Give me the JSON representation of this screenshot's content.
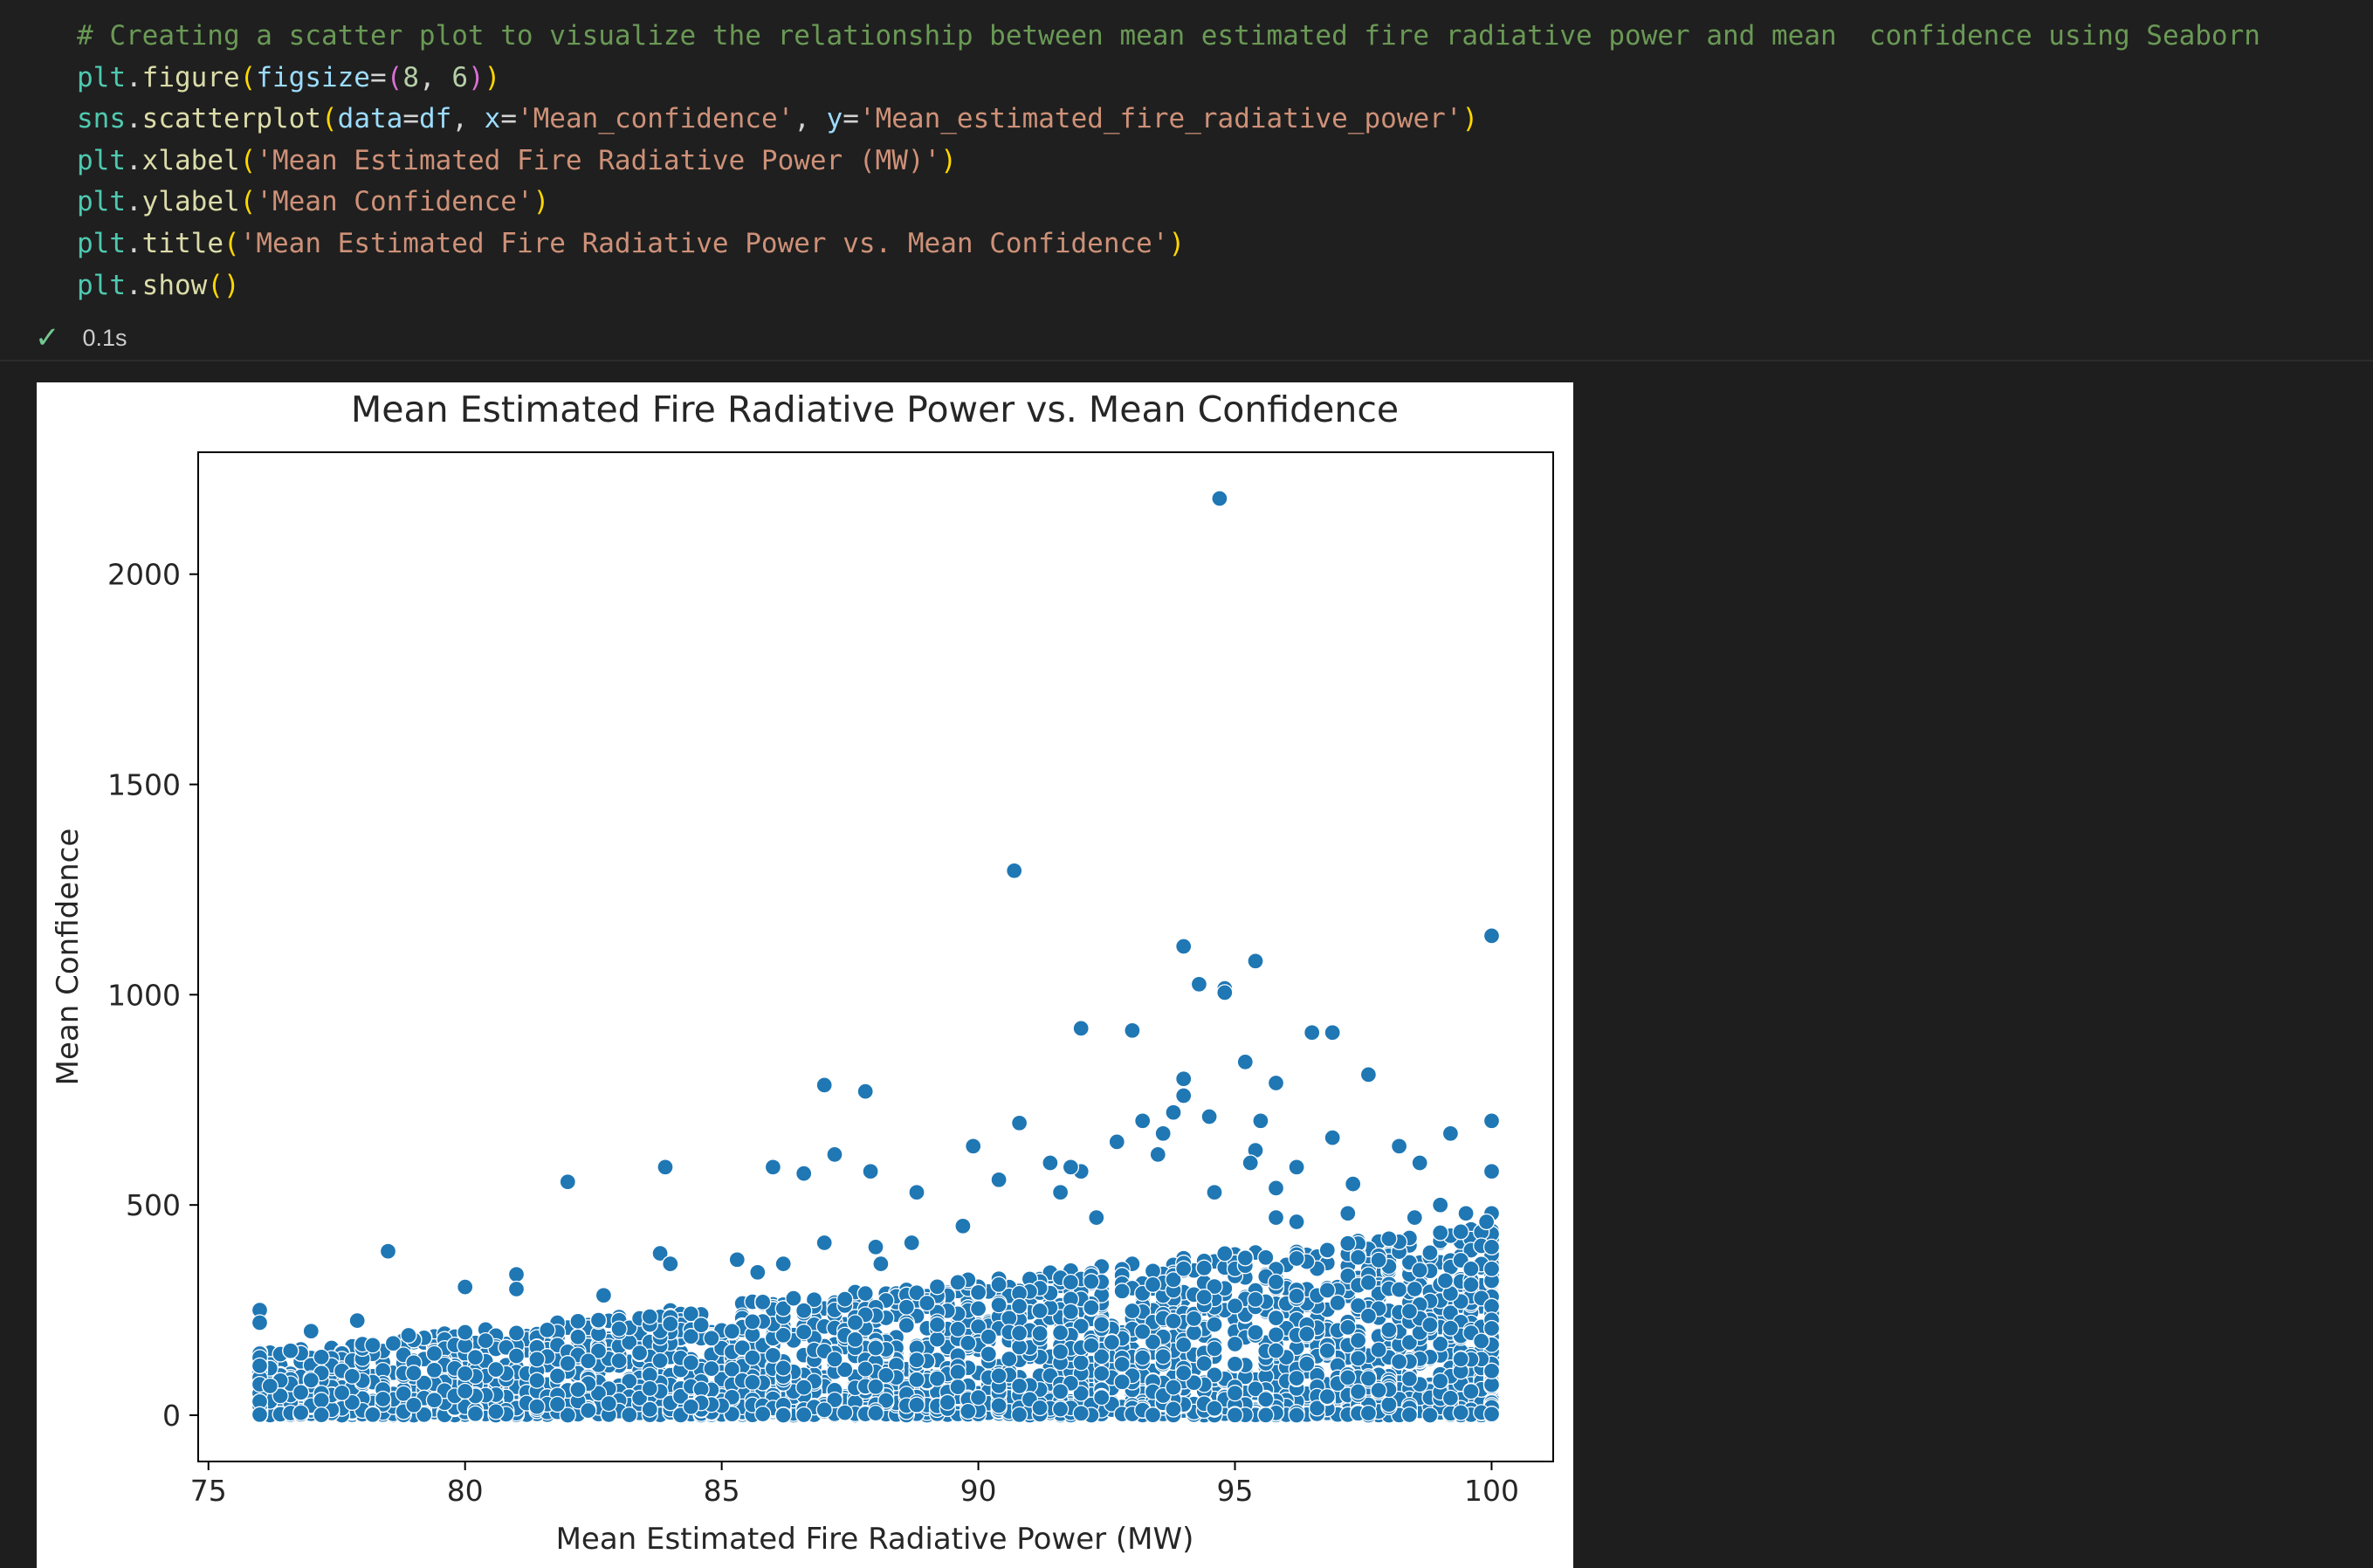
{
  "code_cell": {
    "lines": [
      [
        {
          "c": "cm",
          "t": "# Creating a scatter plot to visualize the relationship between mean estimated fire radiative power and mean  confidence using Seaborn"
        }
      ],
      [
        {
          "c": "mod",
          "t": "plt"
        },
        {
          "c": "",
          "t": "."
        },
        {
          "c": "fn",
          "t": "figure"
        },
        {
          "c": "b1",
          "t": "("
        },
        {
          "c": "pm",
          "t": "figsize"
        },
        {
          "c": "",
          "t": "="
        },
        {
          "c": "b2",
          "t": "("
        },
        {
          "c": "nm",
          "t": "8"
        },
        {
          "c": "",
          "t": ", "
        },
        {
          "c": "nm",
          "t": "6"
        },
        {
          "c": "b2",
          "t": ")"
        },
        {
          "c": "b1",
          "t": ")"
        }
      ],
      [
        {
          "c": "mod",
          "t": "sns"
        },
        {
          "c": "",
          "t": "."
        },
        {
          "c": "fn",
          "t": "scatterplot"
        },
        {
          "c": "b1",
          "t": "("
        },
        {
          "c": "pm",
          "t": "data"
        },
        {
          "c": "",
          "t": "="
        },
        {
          "c": "pm",
          "t": "df"
        },
        {
          "c": "",
          "t": ", "
        },
        {
          "c": "pm",
          "t": "x"
        },
        {
          "c": "",
          "t": "="
        },
        {
          "c": "st",
          "t": "'Mean_confidence'"
        },
        {
          "c": "",
          "t": ", "
        },
        {
          "c": "pm",
          "t": "y"
        },
        {
          "c": "",
          "t": "="
        },
        {
          "c": "st",
          "t": "'Mean_estimated_fire_radiative_power'"
        },
        {
          "c": "b1",
          "t": ")"
        }
      ],
      [
        {
          "c": "mod",
          "t": "plt"
        },
        {
          "c": "",
          "t": "."
        },
        {
          "c": "fn",
          "t": "xlabel"
        },
        {
          "c": "b1",
          "t": "("
        },
        {
          "c": "st",
          "t": "'Mean Estimated Fire Radiative Power (MW)'"
        },
        {
          "c": "b1",
          "t": ")"
        }
      ],
      [
        {
          "c": "mod",
          "t": "plt"
        },
        {
          "c": "",
          "t": "."
        },
        {
          "c": "fn",
          "t": "ylabel"
        },
        {
          "c": "b1",
          "t": "("
        },
        {
          "c": "st",
          "t": "'Mean Confidence'"
        },
        {
          "c": "b1",
          "t": ")"
        }
      ],
      [
        {
          "c": "mod",
          "t": "plt"
        },
        {
          "c": "",
          "t": "."
        },
        {
          "c": "fn",
          "t": "title"
        },
        {
          "c": "b1",
          "t": "("
        },
        {
          "c": "st",
          "t": "'Mean Estimated Fire Radiative Power vs. Mean Confidence'"
        },
        {
          "c": "b1",
          "t": ")"
        }
      ],
      [
        {
          "c": "mod",
          "t": "plt"
        },
        {
          "c": "",
          "t": "."
        },
        {
          "c": "fn",
          "t": "show"
        },
        {
          "c": "b1",
          "t": "()"
        }
      ]
    ]
  },
  "status": {
    "check_icon": "check-icon",
    "exec_time": "0.1s"
  },
  "colors": {
    "point": "#1f77b4",
    "point_edge": "#ffffff"
  },
  "chart_data": {
    "type": "scatter",
    "title": "Mean Estimated Fire Radiative Power vs. Mean Confidence",
    "xlabel": "Mean Estimated Fire Radiative Power (MW)",
    "ylabel": "Mean Confidence",
    "xlim": [
      74.8,
      101.2
    ],
    "ylim": [
      -110,
      2290
    ],
    "xticks": [
      75,
      80,
      85,
      90,
      95,
      100
    ],
    "yticks": [
      0,
      500,
      1000,
      1500,
      2000
    ],
    "grid": false,
    "legend": "none",
    "points": [
      [
        94.7,
        2180
      ],
      [
        90.7,
        1295
      ],
      [
        100,
        1140
      ],
      [
        94.0,
        1115
      ],
      [
        95.4,
        1080
      ],
      [
        94.3,
        1025
      ],
      [
        94.8,
        1015
      ],
      [
        94.8,
        1005
      ],
      [
        92.0,
        920
      ],
      [
        93.0,
        915
      ],
      [
        96.5,
        910
      ],
      [
        96.9,
        910
      ],
      [
        97.6,
        810
      ],
      [
        95.2,
        840
      ],
      [
        95.8,
        790
      ],
      [
        94.0,
        800
      ],
      [
        87.0,
        785
      ],
      [
        87.8,
        770
      ],
      [
        94.0,
        760
      ],
      [
        93.8,
        720
      ],
      [
        94.5,
        710
      ],
      [
        95.5,
        700
      ],
      [
        100,
        700
      ],
      [
        90.8,
        695
      ],
      [
        93.2,
        700
      ],
      [
        93.6,
        670
      ],
      [
        92.7,
        650
      ],
      [
        96.9,
        660
      ],
      [
        89.9,
        640
      ],
      [
        98.2,
        640
      ],
      [
        99.2,
        670
      ],
      [
        87.2,
        620
      ],
      [
        93.5,
        620
      ],
      [
        95.4,
        630
      ],
      [
        95.3,
        600
      ],
      [
        98.6,
        600
      ],
      [
        91.4,
        600
      ],
      [
        86.0,
        590
      ],
      [
        83.9,
        590
      ],
      [
        87.9,
        580
      ],
      [
        92.0,
        580
      ],
      [
        91.8,
        590
      ],
      [
        86.6,
        575
      ],
      [
        90.4,
        560
      ],
      [
        100,
        580
      ],
      [
        96.2,
        590
      ],
      [
        82.0,
        555
      ],
      [
        97.3,
        550
      ],
      [
        91.6,
        530
      ],
      [
        88.8,
        530
      ],
      [
        94.6,
        530
      ],
      [
        95.8,
        540
      ],
      [
        99.0,
        500
      ],
      [
        99.5,
        480
      ],
      [
        89.7,
        450
      ],
      [
        78.5,
        390
      ],
      [
        80.0,
        305
      ],
      [
        81.0,
        335
      ],
      [
        83.8,
        385
      ],
      [
        84.0,
        360
      ],
      [
        82.7,
        285
      ],
      [
        81.0,
        300
      ],
      [
        76.0,
        250
      ],
      [
        76.0,
        220
      ],
      [
        77.0,
        200
      ],
      [
        77.9,
        225
      ],
      [
        78.9,
        190
      ],
      [
        85.3,
        370
      ],
      [
        86.2,
        360
      ],
      [
        85.7,
        340
      ],
      [
        87.0,
        410
      ],
      [
        88.0,
        400
      ],
      [
        88.7,
        410
      ],
      [
        92.3,
        470
      ],
      [
        95.8,
        470
      ],
      [
        96.2,
        460
      ],
      [
        97.2,
        480
      ],
      [
        98.5,
        470
      ],
      [
        100,
        480
      ],
      [
        100,
        400
      ],
      [
        99.9,
        460
      ],
      [
        99.1,
        320
      ],
      [
        98.5,
        300
      ],
      [
        88.1,
        360
      ]
    ],
    "cluster": {
      "x_range": [
        76.0,
        100.0
      ],
      "y_range": [
        0,
        460
      ],
      "note": "dense band of several thousand points; upper envelope rises from ~150 at x=76 to ~450 at x=100"
    }
  }
}
